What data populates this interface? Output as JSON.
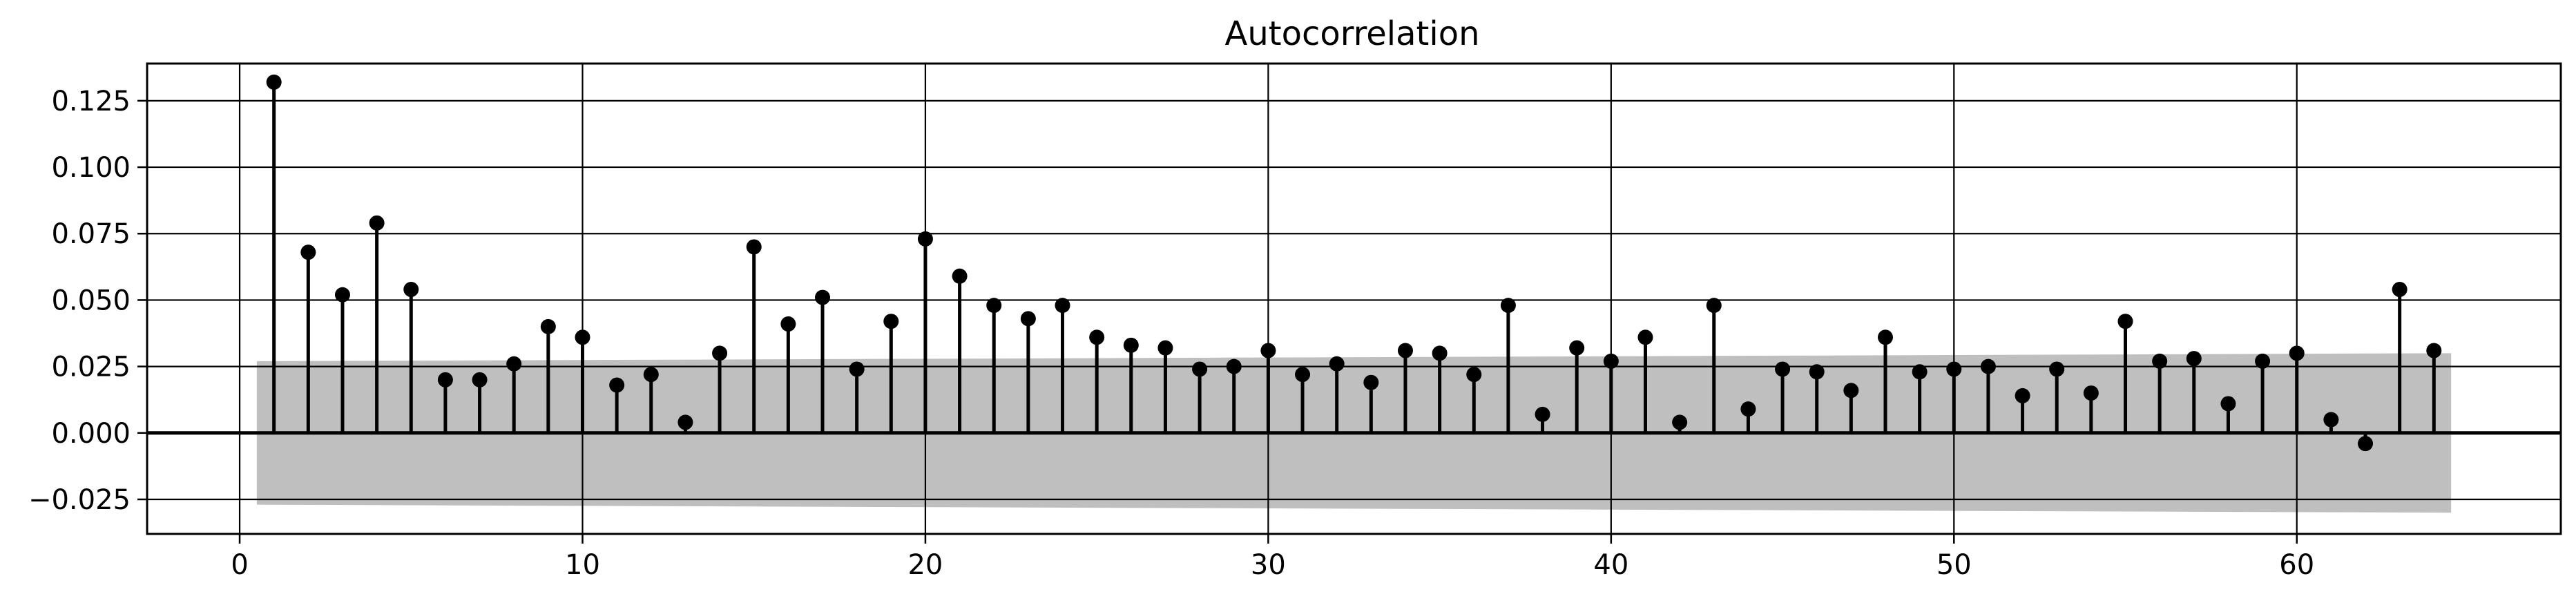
{
  "chart_data": {
    "type": "stem",
    "title": "Autocorrelation",
    "xlabel": "",
    "ylabel": "",
    "xlim": [
      -2.7,
      67.7
    ],
    "ylim": [
      -0.038,
      0.139
    ],
    "grid": true,
    "x_ticks": [
      0,
      10,
      20,
      30,
      40,
      50,
      60
    ],
    "x_tick_labels": [
      "0",
      "10",
      "20",
      "30",
      "40",
      "50",
      "60"
    ],
    "y_ticks": [
      -0.025,
      0.0,
      0.025,
      0.05,
      0.075,
      0.1,
      0.125
    ],
    "y_tick_labels": [
      "−0.025",
      "0.000",
      "0.025",
      "0.050",
      "0.075",
      "0.100",
      "0.125"
    ],
    "confidence_band": {
      "x_range": [
        0.5,
        64.5
      ],
      "upper_start": 0.027,
      "upper_end": 0.03,
      "lower_start": -0.027,
      "lower_end": -0.03,
      "color": "#bfbfbf"
    },
    "series": [
      {
        "x": [
          1,
          2,
          3,
          4,
          5,
          6,
          7,
          8,
          9,
          10,
          11,
          12,
          13,
          14,
          15,
          16,
          17,
          18,
          19,
          20,
          21,
          22,
          23,
          24,
          25,
          26,
          27,
          28,
          29,
          30,
          31,
          32,
          33,
          34,
          35,
          36,
          37,
          38,
          39,
          40,
          41,
          42,
          43,
          44,
          45,
          46,
          47,
          48,
          49,
          50,
          51,
          52,
          53,
          54,
          55,
          56,
          57,
          58,
          59,
          60,
          61,
          62,
          63,
          64
        ],
        "values": [
          0.132,
          0.068,
          0.052,
          0.079,
          0.054,
          0.02,
          0.02,
          0.026,
          0.04,
          0.036,
          0.018,
          0.022,
          0.004,
          0.03,
          0.07,
          0.041,
          0.051,
          0.024,
          0.042,
          0.073,
          0.059,
          0.048,
          0.043,
          0.048,
          0.036,
          0.033,
          0.032,
          0.024,
          0.025,
          0.031,
          0.022,
          0.026,
          0.019,
          0.031,
          0.03,
          0.022,
          0.048,
          0.007,
          0.032,
          0.027,
          0.036,
          0.004,
          0.048,
          0.009,
          0.024,
          0.023,
          0.016,
          0.036,
          0.023,
          0.024,
          0.025,
          0.014,
          0.024,
          0.015,
          0.042,
          0.027,
          0.028,
          0.011,
          0.027,
          0.03,
          0.005,
          -0.004,
          0.054,
          0.031
        ],
        "color": "#000000"
      }
    ]
  }
}
